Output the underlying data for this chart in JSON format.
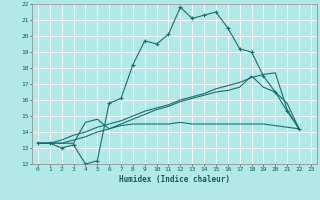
{
  "xlabel": "Humidex (Indice chaleur)",
  "background_color": "#b2e8e8",
  "grid_color": "#d0eaea",
  "line_color": "#1a6e6e",
  "xlim": [
    -0.5,
    23.5
  ],
  "ylim": [
    12,
    22
  ],
  "xticks": [
    0,
    1,
    2,
    3,
    4,
    5,
    6,
    7,
    8,
    9,
    10,
    11,
    12,
    13,
    14,
    15,
    16,
    17,
    18,
    19,
    20,
    21,
    22,
    23
  ],
  "yticks": [
    12,
    13,
    14,
    15,
    16,
    17,
    18,
    19,
    20,
    21,
    22
  ],
  "series": [
    {
      "x": [
        0,
        1,
        2,
        3,
        4,
        5,
        6,
        7,
        8,
        9,
        10,
        11,
        12,
        13,
        14,
        15,
        16,
        17,
        18,
        19,
        20,
        21,
        22
      ],
      "y": [
        13.3,
        13.3,
        13.0,
        13.2,
        12.0,
        12.2,
        15.8,
        16.1,
        18.2,
        19.7,
        19.5,
        20.1,
        21.8,
        21.1,
        21.3,
        21.5,
        20.5,
        19.2,
        19.0,
        17.5,
        16.5,
        15.3,
        14.2
      ],
      "marker": true
    },
    {
      "x": [
        0,
        1,
        2,
        3,
        4,
        5,
        6,
        7,
        8,
        9,
        10,
        11,
        12,
        13,
        14,
        15,
        16,
        17,
        18,
        19,
        20,
        21,
        22
      ],
      "y": [
        13.3,
        13.3,
        13.3,
        13.3,
        14.6,
        14.8,
        14.2,
        14.4,
        14.5,
        14.5,
        14.5,
        14.5,
        14.6,
        14.5,
        14.5,
        14.5,
        14.5,
        14.5,
        14.5,
        14.5,
        14.4,
        14.3,
        14.2
      ],
      "marker": false
    },
    {
      "x": [
        0,
        1,
        2,
        3,
        4,
        5,
        6,
        7,
        8,
        9,
        10,
        11,
        12,
        13,
        14,
        15,
        16,
        17,
        18,
        19,
        20,
        21,
        22
      ],
      "y": [
        13.3,
        13.3,
        13.3,
        13.5,
        13.7,
        14.0,
        14.2,
        14.5,
        14.8,
        15.1,
        15.4,
        15.6,
        15.9,
        16.1,
        16.3,
        16.5,
        16.6,
        16.8,
        17.5,
        16.8,
        16.5,
        15.8,
        14.2
      ],
      "marker": false
    },
    {
      "x": [
        0,
        1,
        2,
        3,
        4,
        5,
        6,
        7,
        8,
        9,
        10,
        11,
        12,
        13,
        14,
        15,
        16,
        17,
        18,
        19,
        20,
        21,
        22
      ],
      "y": [
        13.3,
        13.3,
        13.5,
        13.8,
        14.0,
        14.3,
        14.5,
        14.7,
        15.0,
        15.3,
        15.5,
        15.7,
        16.0,
        16.2,
        16.4,
        16.7,
        16.9,
        17.1,
        17.4,
        17.6,
        17.7,
        15.4,
        14.2
      ],
      "marker": false
    }
  ]
}
